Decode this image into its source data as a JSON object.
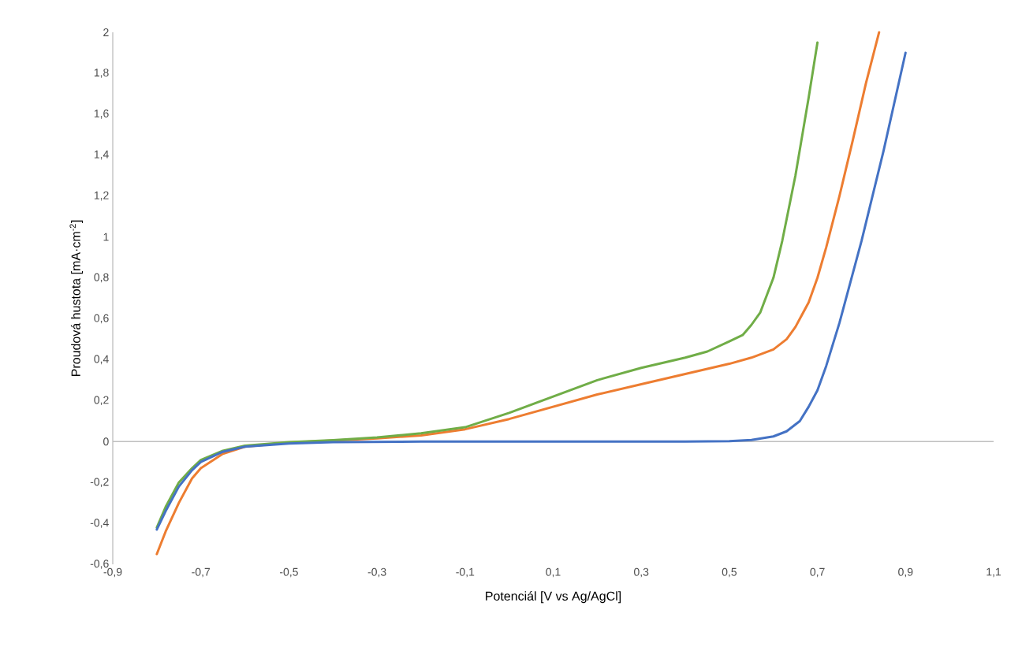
{
  "chart_data": {
    "type": "line",
    "xlabel": "Potenciál [V vs Ag/AgCl]",
    "ylabel": "Proudová hustota [mA·cm$^{-2}$]",
    "xlim": [
      -0.9,
      1.1
    ],
    "ylim": [
      -0.6,
      2
    ],
    "xticks": [
      {
        "value": -0.9,
        "label": "-0,9"
      },
      {
        "value": -0.7,
        "label": "-0,7"
      },
      {
        "value": -0.5,
        "label": "-0,5"
      },
      {
        "value": -0.3,
        "label": "-0,3"
      },
      {
        "value": -0.1,
        "label": "-0,1"
      },
      {
        "value": 0.1,
        "label": "0,1"
      },
      {
        "value": 0.3,
        "label": "0,3"
      },
      {
        "value": 0.5,
        "label": "0,5"
      },
      {
        "value": 0.7,
        "label": "0,7"
      },
      {
        "value": 0.9,
        "label": "0,9"
      },
      {
        "value": 1.1,
        "label": "1,1"
      }
    ],
    "yticks": [
      {
        "value": -0.6,
        "label": "-0,6"
      },
      {
        "value": -0.4,
        "label": "-0,4"
      },
      {
        "value": -0.2,
        "label": "-0,2"
      },
      0,
      {
        "value": 0.2,
        "label": "0,2"
      },
      {
        "value": 0.4,
        "label": "0,4"
      },
      {
        "value": 0.6,
        "label": "0,6"
      },
      {
        "value": 0.8,
        "label": "0,8"
      },
      1,
      {
        "value": 1.2,
        "label": "1,2"
      },
      {
        "value": 1.4,
        "label": "1,4"
      },
      {
        "value": 1.6,
        "label": "1,6"
      },
      {
        "value": 1.8,
        "label": "1,8"
      },
      2
    ],
    "marker": "none",
    "line_style": "solid",
    "series": [
      {
        "color": "#ed7d31",
        "x": [
          -0.8,
          -0.78,
          -0.75,
          -0.72,
          -0.7,
          -0.65,
          -0.6,
          -0.5,
          -0.4,
          -0.3,
          -0.2,
          -0.1,
          0,
          0.1,
          0.2,
          0.3,
          0.4,
          0.5,
          0.55,
          0.6,
          0.63,
          0.65,
          0.68,
          0.7,
          0.72,
          0.75,
          0.78,
          0.81,
          0.84
        ],
        "values": [
          -0.55,
          -0.44,
          -0.3,
          -0.18,
          -0.13,
          -0.06,
          -0.025,
          -0.005,
          0.005,
          0.015,
          0.03,
          0.06,
          0.11,
          0.17,
          0.23,
          0.28,
          0.33,
          0.38,
          0.41,
          0.45,
          0.5,
          0.56,
          0.68,
          0.8,
          0.95,
          1.2,
          1.47,
          1.75,
          2.0
        ]
      },
      {
        "color": "#70ad47",
        "x": [
          -0.8,
          -0.78,
          -0.75,
          -0.72,
          -0.7,
          -0.65,
          -0.6,
          -0.5,
          -0.4,
          -0.3,
          -0.2,
          -0.1,
          0,
          0.1,
          0.2,
          0.3,
          0.4,
          0.45,
          0.5,
          0.53,
          0.55,
          0.57,
          0.6,
          0.62,
          0.65,
          0.68,
          0.7
        ],
        "values": [
          -0.42,
          -0.32,
          -0.2,
          -0.13,
          -0.09,
          -0.045,
          -0.02,
          -0.003,
          0.007,
          0.02,
          0.04,
          0.07,
          0.14,
          0.22,
          0.3,
          0.36,
          0.41,
          0.44,
          0.49,
          0.52,
          0.57,
          0.63,
          0.8,
          0.98,
          1.3,
          1.68,
          1.95
        ]
      },
      {
        "color": "#4472c4",
        "x": [
          -0.8,
          -0.78,
          -0.75,
          -0.72,
          -0.7,
          -0.65,
          -0.6,
          -0.5,
          -0.4,
          -0.2,
          0,
          0.2,
          0.4,
          0.5,
          0.55,
          0.6,
          0.63,
          0.66,
          0.68,
          0.7,
          0.72,
          0.75,
          0.8,
          0.85,
          0.9
        ],
        "values": [
          -0.43,
          -0.34,
          -0.22,
          -0.14,
          -0.1,
          -0.05,
          -0.025,
          -0.01,
          -0.003,
          0,
          0,
          0,
          0,
          0.002,
          0.008,
          0.025,
          0.05,
          0.1,
          0.17,
          0.25,
          0.37,
          0.58,
          0.98,
          1.42,
          1.9
        ]
      }
    ]
  }
}
